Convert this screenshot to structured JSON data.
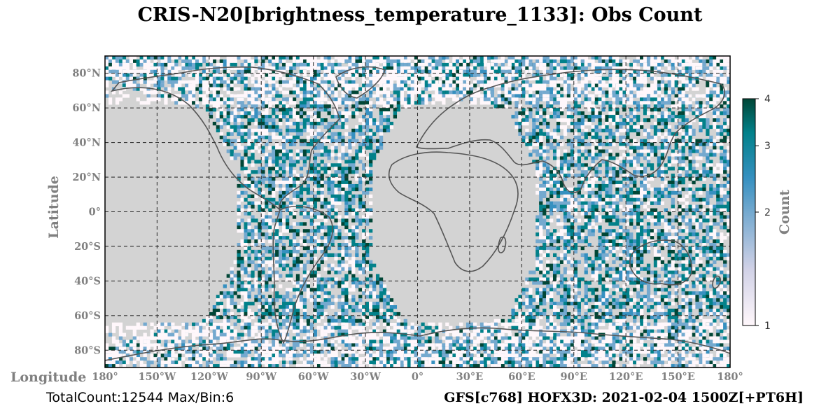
{
  "title": "CRIS-N20[brightness_temperature_1133]: Obs Count",
  "footer": {
    "total": "TotalCount:12544 Max/Bin:6",
    "run": "GFS[c768] HOFX3D: 2021-02-04 1500Z[+PT6H]"
  },
  "chart_data": {
    "type": "heatmap",
    "title": "CRIS-N20[brightness_temperature_1133]: Obs Count",
    "xlabel": "Longitude",
    "ylabel": "Latitude",
    "xlim": [
      -180,
      180
    ],
    "ylim": [
      -90,
      90
    ],
    "grid": true,
    "x_ticks": [
      "180°",
      "150°W",
      "120°W",
      "90°W",
      "60°W",
      "30°W",
      "0°",
      "30°E",
      "60°E",
      "90°E",
      "120°E",
      "150°E",
      "180°"
    ],
    "y_ticks": [
      "80°N",
      "60°N",
      "40°N",
      "20°N",
      "0°",
      "20°S",
      "40°S",
      "60°S",
      "80°S"
    ],
    "colorbar": {
      "label": "Count",
      "scale": "log",
      "range": [
        1,
        4
      ],
      "ticks": [
        "1",
        "2",
        "3",
        "4"
      ],
      "colors": [
        "#fff7fb",
        "#d0d1e6",
        "#74a9cf",
        "#3690c0",
        "#02818a",
        "#014636"
      ]
    },
    "total_count": 12544,
    "max_per_bin": 6,
    "land_color": "#d3d3d3",
    "coastline_color": "#555555",
    "swaths": [
      {
        "lon_min_equator": -105,
        "lon_max_equator": -28,
        "lat_range": [
          -90,
          90
        ]
      },
      {
        "lon_min_equator": 68,
        "lon_max_equator": 180,
        "lat_range": [
          -90,
          90
        ]
      }
    ]
  }
}
